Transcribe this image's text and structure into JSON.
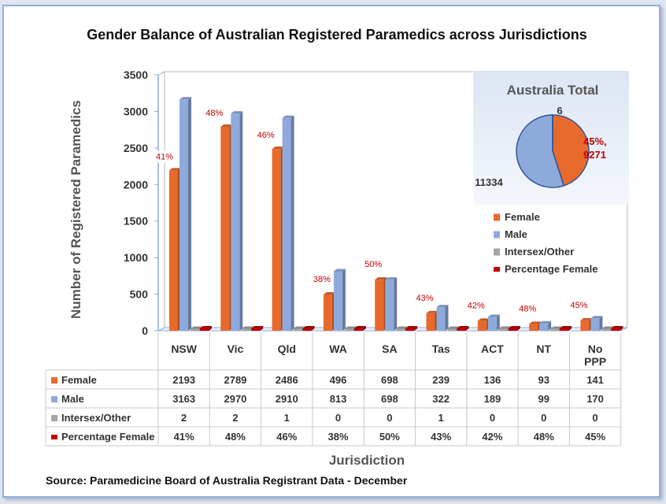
{
  "chart_data": {
    "type": "bar",
    "title": "Gender Balance of Australian Registered Paramedics across Jurisdictions",
    "ylabel": "Number of Registered Paramedics",
    "xlabel": "Jurisdiction",
    "ylim": [
      0,
      3500
    ],
    "yticks": [
      "0",
      "500",
      "1000",
      "1500",
      "2000",
      "2500",
      "3000",
      "3500"
    ],
    "grid": false,
    "categories": [
      "NSW",
      "Vic",
      "Qld",
      "WA",
      "SA",
      "Tas",
      "ACT",
      "NT",
      "No PPP"
    ],
    "series": [
      {
        "name": "Female",
        "color": "#e8692c",
        "values": [
          2193,
          2789,
          2486,
          496,
          698,
          239,
          136,
          93,
          141
        ]
      },
      {
        "name": "Male",
        "color": "#8eaadb",
        "values": [
          3163,
          2970,
          2910,
          813,
          698,
          322,
          189,
          99,
          170
        ]
      },
      {
        "name": "Intersex/Other",
        "color": "#a5a5a5",
        "values": [
          2,
          2,
          1,
          0,
          0,
          1,
          0,
          0,
          0
        ]
      },
      {
        "name": "Percentage Female",
        "color": "#c00000",
        "values": [
          41,
          48,
          46,
          38,
          50,
          43,
          42,
          48,
          45
        ]
      }
    ],
    "percent_labels": [
      "41%",
      "48%",
      "46%",
      "38%",
      "50%",
      "43%",
      "42%",
      "48%",
      "45%"
    ],
    "table": {
      "rows": [
        {
          "label": "Female",
          "cells": [
            "2193",
            "2789",
            "2486",
            "496",
            "698",
            "239",
            "136",
            "93",
            "141"
          ]
        },
        {
          "label": "Male",
          "cells": [
            "3163",
            "2970",
            "2910",
            "813",
            "698",
            "322",
            "189",
            "99",
            "170"
          ]
        },
        {
          "label": "Intersex/Other",
          "cells": [
            "2",
            "2",
            "1",
            "0",
            "0",
            "1",
            "0",
            "0",
            "0"
          ]
        },
        {
          "label": "Percentage Female",
          "cells": [
            "41%",
            "48%",
            "46%",
            "38%",
            "50%",
            "43%",
            "42%",
            "48%",
            "45%"
          ]
        }
      ]
    },
    "inset": {
      "type": "pie",
      "title": "Australia Total",
      "slices": [
        {
          "name": "Female",
          "value": 9271,
          "color": "#e8692c"
        },
        {
          "name": "Male",
          "value": 11334,
          "color": "#8eaadb"
        },
        {
          "name": "Intersex/Other",
          "value": 6,
          "color": "#a5a5a5"
        }
      ],
      "labels": {
        "female": "45%,",
        "female_value": "9271",
        "male": "11334",
        "other": "6"
      }
    },
    "legend_position": "right"
  },
  "source": "Source: Paramedicine Board of Australia Registrant Data - December"
}
